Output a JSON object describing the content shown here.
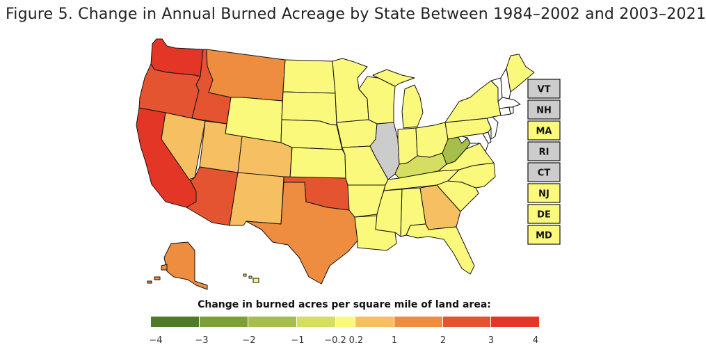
{
  "title": "Figure 5. Change in Annual Burned Acreage by State Between 1984–2002 and 2003–2021",
  "legend": {
    "title": "Change in burned acres per square mile of land area:",
    "bins": [
      {
        "color": "#4f7a28"
      },
      {
        "color": "#7ba035"
      },
      {
        "color": "#a6bf4b"
      },
      {
        "color": "#d5de60"
      },
      {
        "color": "#fbf97b"
      },
      {
        "color": "#f5bf62"
      },
      {
        "color": "#ee8c40"
      },
      {
        "color": "#e55430"
      },
      {
        "color": "#e33626"
      }
    ],
    "ticks": [
      "−4",
      "−3",
      "−2",
      "−1",
      "−0.2",
      "0.2",
      "1",
      "2",
      "3",
      "4"
    ]
  },
  "no_data_color": "#cccccc",
  "states": {
    "WA": {
      "bin": "3 to 4"
    },
    "OR": {
      "bin": "2 to 3"
    },
    "CA": {
      "bin": "3 to 4"
    },
    "ID": {
      "bin": "2 to 3"
    },
    "NV": {
      "bin": "0.2 to 1"
    },
    "UT": {
      "bin": "0.2 to 1"
    },
    "AZ": {
      "bin": "2 to 3"
    },
    "MT": {
      "bin": "1 to 2"
    },
    "WY": {
      "bin": "-0.2 to 0.2"
    },
    "CO": {
      "bin": "0.2 to 1"
    },
    "NM": {
      "bin": "0.2 to 1"
    },
    "ND": {
      "bin": "-0.2 to 0.2"
    },
    "SD": {
      "bin": "-0.2 to 0.2"
    },
    "NE": {
      "bin": "-0.2 to 0.2"
    },
    "KS": {
      "bin": "-0.2 to 0.2"
    },
    "OK": {
      "bin": "2 to 3"
    },
    "TX": {
      "bin": "1 to 2"
    },
    "MN": {
      "bin": "-0.2 to 0.2"
    },
    "IA": {
      "bin": "-0.2 to 0.2"
    },
    "MO": {
      "bin": "-0.2 to 0.2"
    },
    "AR": {
      "bin": "-0.2 to 0.2"
    },
    "LA": {
      "bin": "-0.2 to 0.2"
    },
    "WI": {
      "bin": "-0.2 to 0.2"
    },
    "IL": {
      "bin": "no data"
    },
    "MI": {
      "bin": "-0.2 to 0.2"
    },
    "IN": {
      "bin": "-0.2 to 0.2"
    },
    "OH": {
      "bin": "-0.2 to 0.2"
    },
    "KY": {
      "bin": "-1 to -0.2"
    },
    "TN": {
      "bin": "-0.2 to 0.2"
    },
    "MS": {
      "bin": "-0.2 to 0.2"
    },
    "AL": {
      "bin": "-0.2 to 0.2"
    },
    "GA": {
      "bin": "0.2 to 1"
    },
    "FL": {
      "bin": "-0.2 to 0.2"
    },
    "SC": {
      "bin": "-0.2 to 0.2"
    },
    "NC": {
      "bin": "-0.2 to 0.2"
    },
    "VA": {
      "bin": "-0.2 to 0.2"
    },
    "WV": {
      "bin": "-2 to -1"
    },
    "PA": {
      "bin": "-0.2 to 0.2"
    },
    "NY": {
      "bin": "-0.2 to 0.2"
    },
    "ME": {
      "bin": "-0.2 to 0.2"
    },
    "AK": {
      "bin": "1 to 2"
    },
    "HI": {
      "bin": "-0.2 to 0.2"
    }
  },
  "small_states": [
    {
      "label": "VT",
      "color": "#cccccc"
    },
    {
      "label": "NH",
      "color": "#cccccc"
    },
    {
      "label": "MA",
      "color": "#fbf97b"
    },
    {
      "label": "RI",
      "color": "#cccccc"
    },
    {
      "label": "CT",
      "color": "#cccccc"
    },
    {
      "label": "NJ",
      "color": "#fbf97b"
    },
    {
      "label": "DE",
      "color": "#fbf97b"
    },
    {
      "label": "MD",
      "color": "#fbf97b"
    }
  ]
}
